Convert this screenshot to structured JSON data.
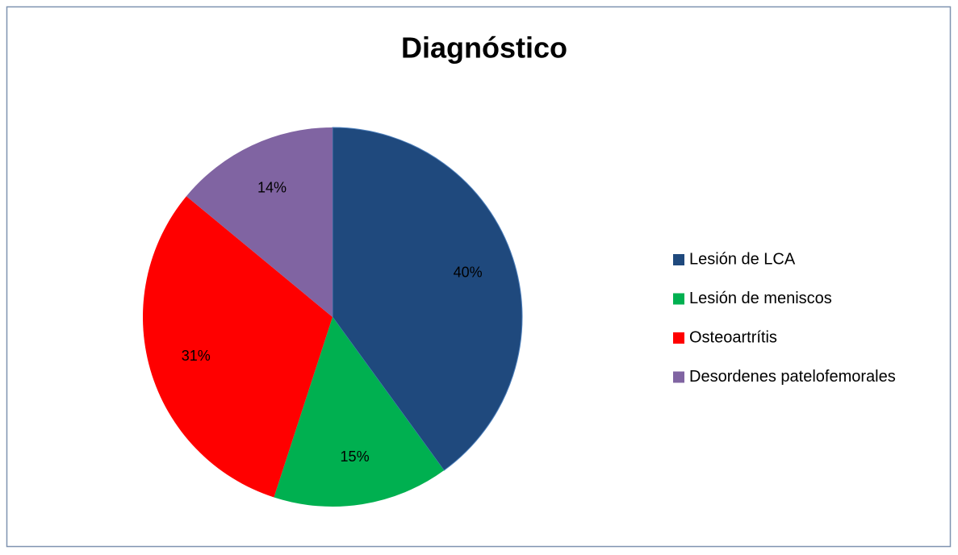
{
  "chart_data": {
    "type": "pie",
    "title": "Diagnóstico",
    "categories": [
      "Lesión de LCA",
      "Lesión de meniscos",
      "Osteoartrítis",
      "Desordenes patelofemorales"
    ],
    "values": [
      40,
      15,
      31,
      14
    ],
    "value_labels": [
      "40%",
      "15%",
      "31%",
      "14%"
    ],
    "colors": [
      "#1f497d",
      "#00b050",
      "#ff0000",
      "#8064a2"
    ],
    "legend": "right"
  }
}
